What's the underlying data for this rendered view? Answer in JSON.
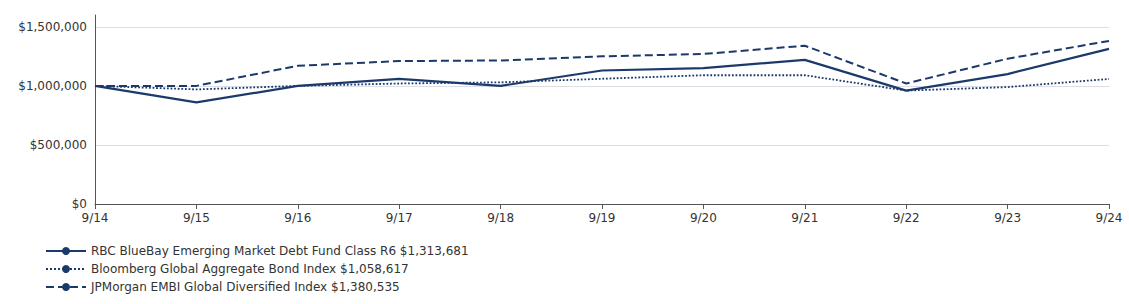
{
  "chart_data": {
    "type": "line",
    "categories": [
      "9/14",
      "9/15",
      "9/16",
      "9/17",
      "9/18",
      "9/19",
      "9/20",
      "9/21",
      "9/22",
      "9/23",
      "9/24"
    ],
    "series": [
      {
        "name": "RBC BlueBay Emerging Market Debt Fund Class R6 $1,313,681",
        "color": "#1B3A6B",
        "line_style": "solid",
        "values": [
          1000000,
          860000,
          1000000,
          1060000,
          1000000,
          1130000,
          1150000,
          1220000,
          960000,
          1100000,
          1313681
        ]
      },
      {
        "name": "Bloomberg Global Aggregate Bond Index $1,058,617",
        "color": "#1B3A6B",
        "line_style": "dotted",
        "values": [
          1000000,
          970000,
          1000000,
          1020000,
          1030000,
          1060000,
          1090000,
          1090000,
          960000,
          990000,
          1058617
        ]
      },
      {
        "name": "JPMorgan EMBI Global Diversified Index $1,380,535",
        "color": "#1B3A6B",
        "line_style": "dashed",
        "values": [
          1000000,
          1000000,
          1170000,
          1210000,
          1215000,
          1250000,
          1270000,
          1340000,
          1020000,
          1230000,
          1380535
        ]
      }
    ],
    "ylim": [
      0,
      1600000
    ],
    "yticks": [
      {
        "value": 0,
        "label": "$0"
      },
      {
        "value": 500000,
        "label": "$500,000"
      },
      {
        "value": 1000000,
        "label": "$1,000,000"
      },
      {
        "value": 1500000,
        "label": "$1,500,000"
      }
    ],
    "grid": true,
    "legend": "lower left"
  }
}
